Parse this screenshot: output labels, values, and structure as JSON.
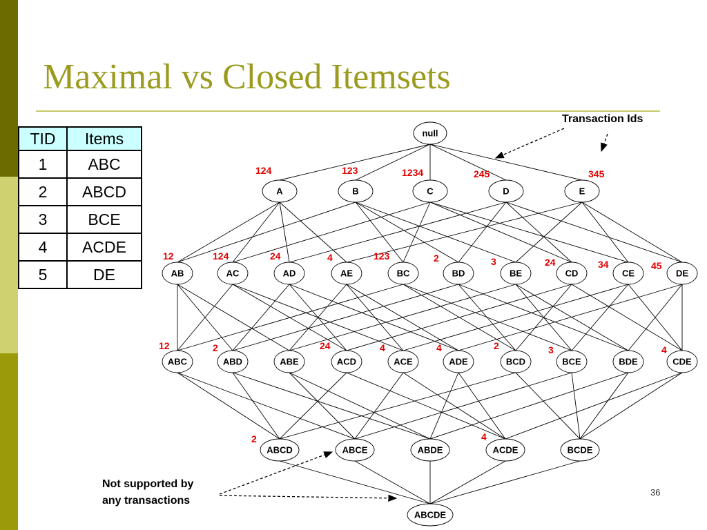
{
  "title": "Maximal vs Closed Itemsets",
  "page_number": "36",
  "table": {
    "headers": [
      "TID",
      "Items"
    ],
    "rows": [
      [
        "1",
        "ABC"
      ],
      [
        "2",
        "ABCD"
      ],
      [
        "3",
        "BCE"
      ],
      [
        "4",
        "ACDE"
      ],
      [
        "5",
        "DE"
      ]
    ]
  },
  "callouts": {
    "transaction_ids": "Transaction Ids",
    "not_supported_line1": "Not supported by",
    "not_supported_line2": "any transactions"
  },
  "lattice": {
    "levels": [
      [
        "null"
      ],
      [
        "A",
        "B",
        "C",
        "D",
        "E"
      ],
      [
        "AB",
        "AC",
        "AD",
        "AE",
        "BC",
        "BD",
        "BE",
        "CD",
        "CE",
        "DE"
      ],
      [
        "ABC",
        "ABD",
        "ABE",
        "ACD",
        "ACE",
        "ADE",
        "BCD",
        "BCE",
        "BDE",
        "CDE"
      ],
      [
        "ABCD",
        "ABCE",
        "ABDE",
        "ACDE",
        "BCDE"
      ],
      [
        "ABCDE"
      ]
    ],
    "tids": {
      "A": "124",
      "B": "123",
      "C": "1234",
      "D": "245",
      "E": "345",
      "AB": "12",
      "AC": "124",
      "AD": "24",
      "AE": "4",
      "BC": "123",
      "BD": "2",
      "BE": "3",
      "CD": "24",
      "CE": "34",
      "DE": "45",
      "ABC": "12",
      "ABD": "2",
      "ACD": "24",
      "ACE": "4",
      "ADE": "4",
      "BCD": "2",
      "BCE": "3",
      "CDE": "4",
      "ABCD": "2",
      "ACDE": "4"
    }
  }
}
